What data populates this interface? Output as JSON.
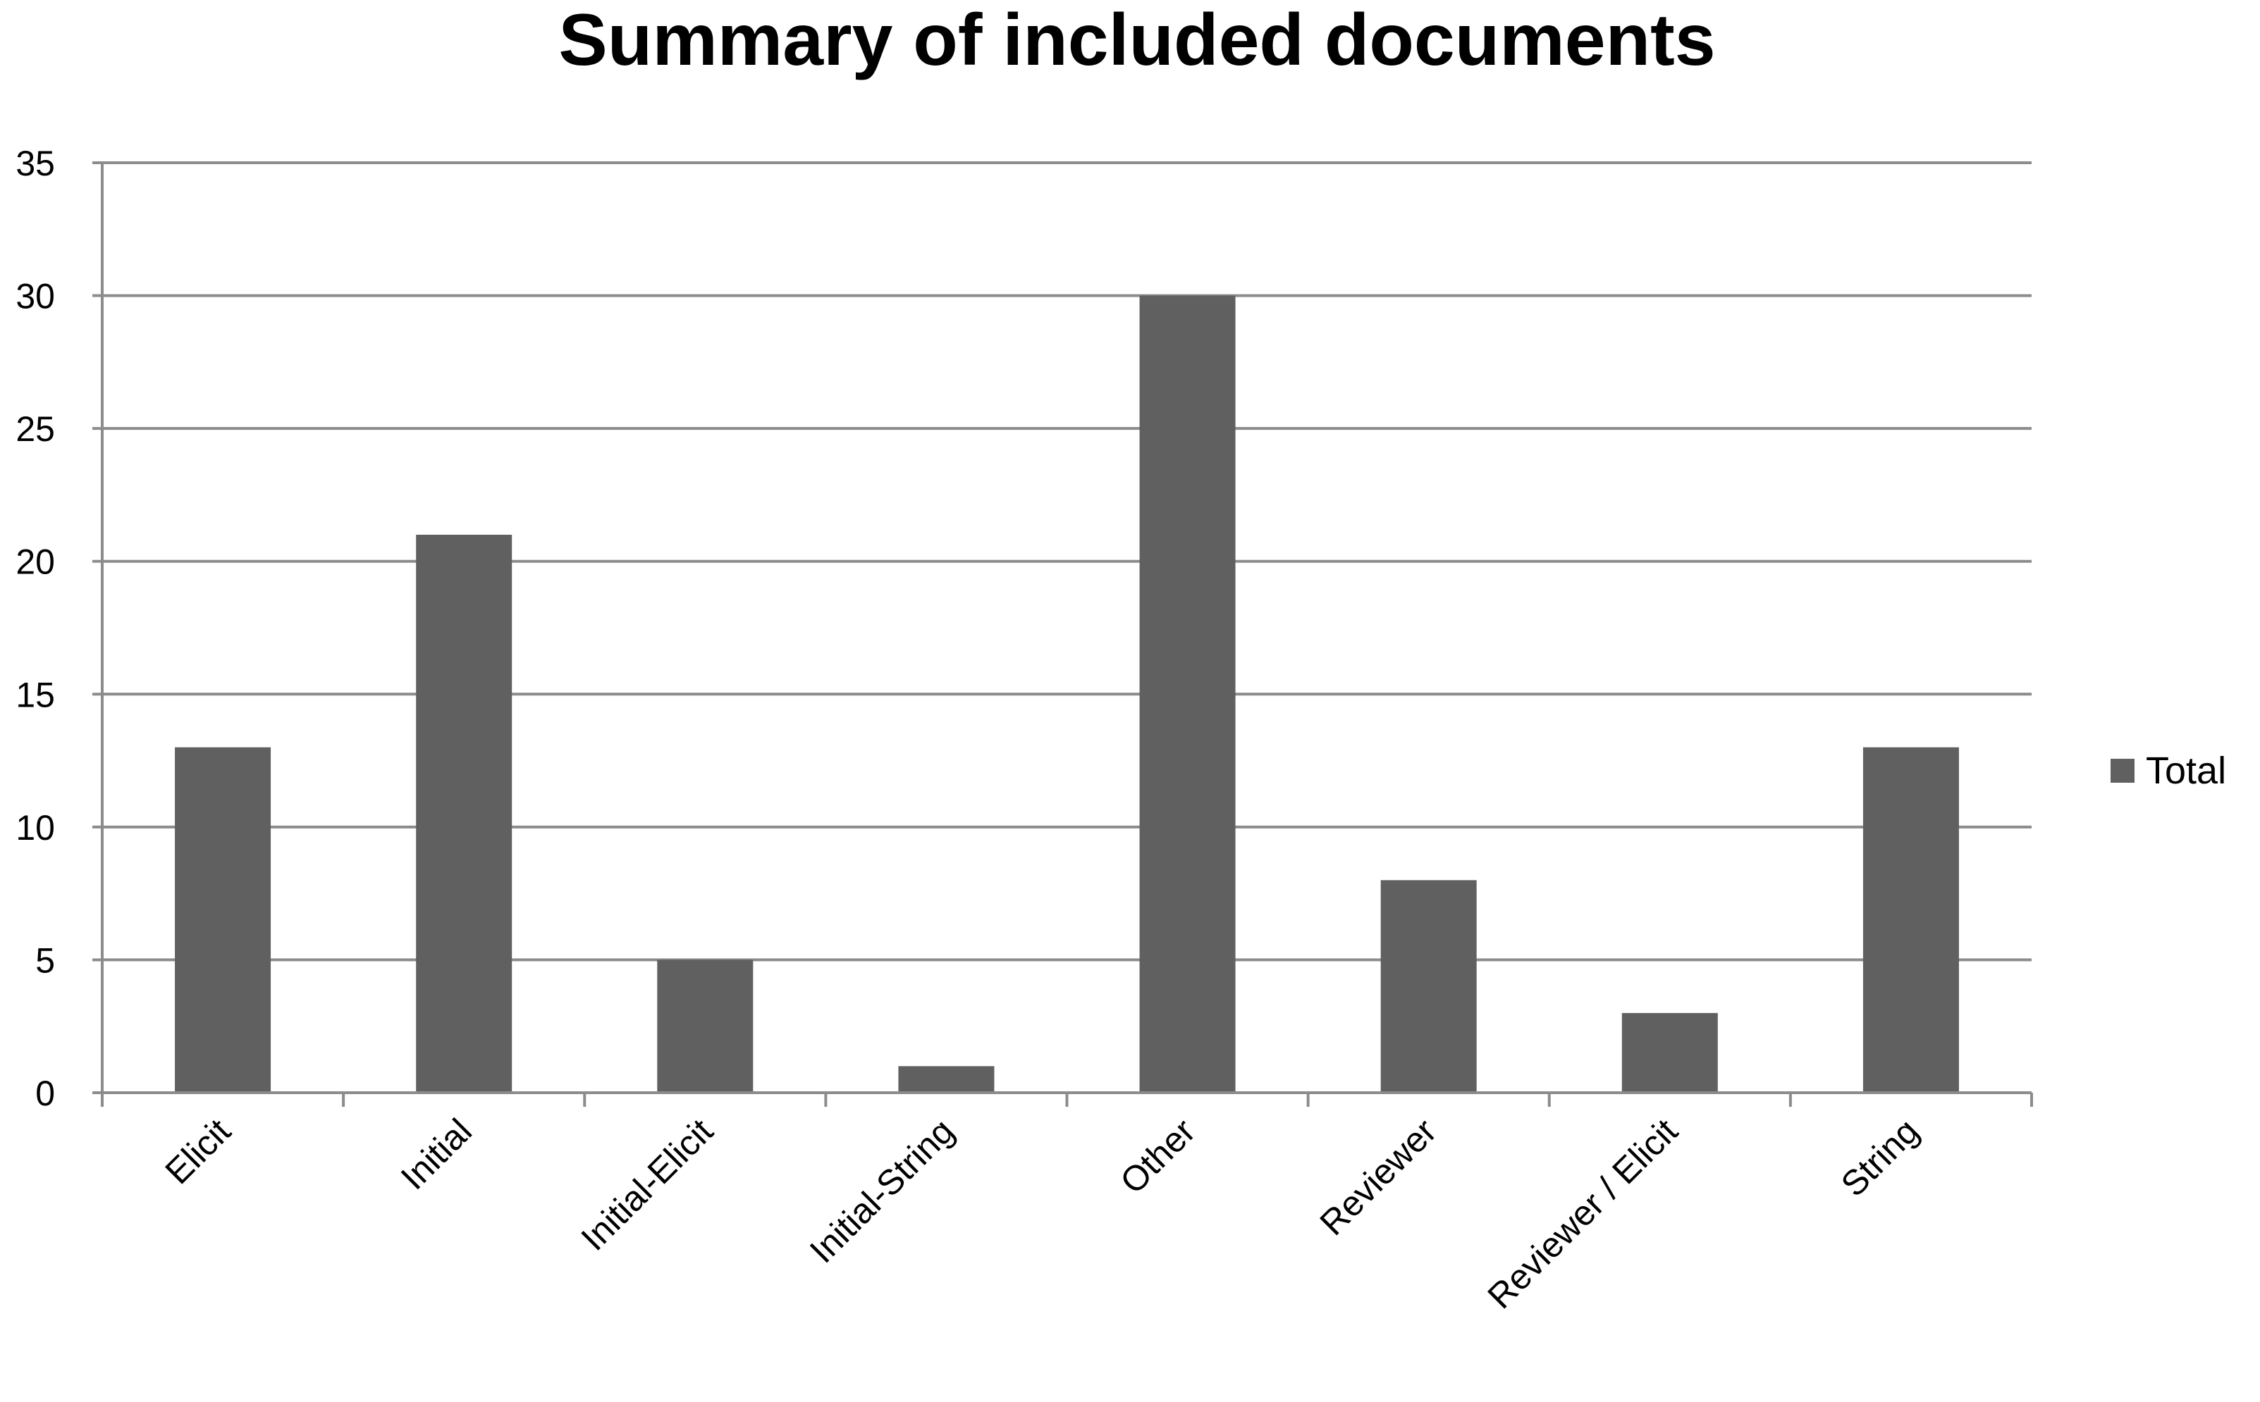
{
  "chart_data": {
    "type": "bar",
    "title": "Summary of included documents",
    "xlabel": "",
    "ylabel": "",
    "categories": [
      "Elicit",
      "Initial",
      "Initial-Elicit",
      "Initial-String",
      "Other",
      "Reviewer",
      "Reviewer / Elicit",
      "String"
    ],
    "series": [
      {
        "name": "Total",
        "values": [
          13,
          21,
          5,
          1,
          30,
          8,
          3,
          13
        ],
        "color": "#606060"
      }
    ],
    "ylim": [
      0,
      35
    ],
    "yticks": [
      0,
      5,
      10,
      15,
      20,
      25,
      30,
      35
    ],
    "grid": true,
    "legend_position": "right",
    "colors": {
      "bar": "#606060",
      "grid": "#8c8c8c",
      "axis": "#8c8c8c",
      "text": "#000000"
    }
  }
}
